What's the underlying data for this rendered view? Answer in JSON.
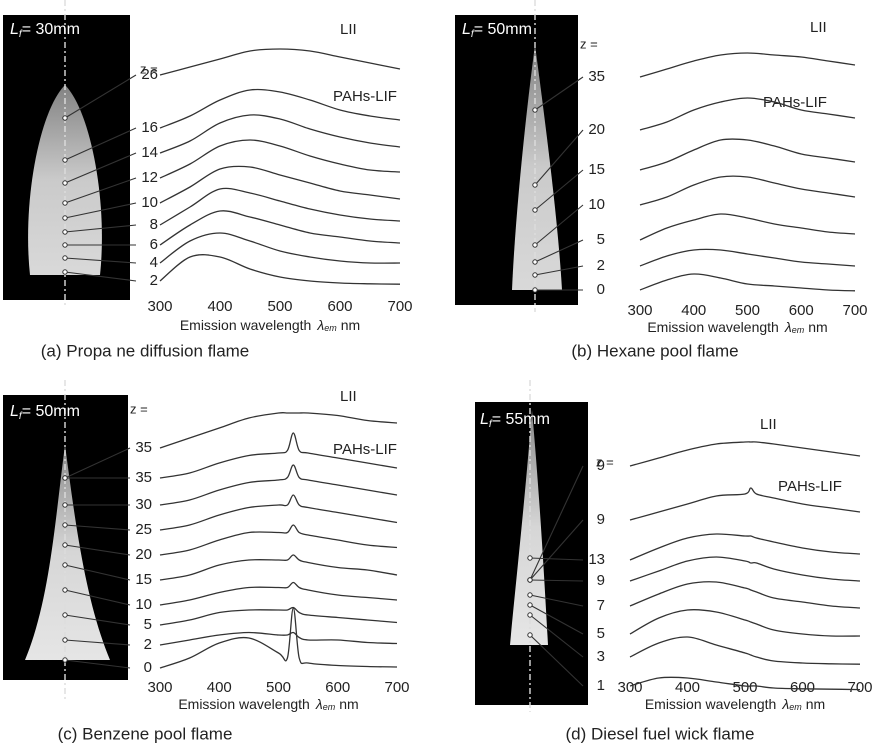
{
  "chart_data": [
    {
      "type": "line",
      "caption": "(a) Propa ne diffusion flame",
      "flame_symbol": "L",
      "flame_symbol_sub": "f",
      "flame_length": "= 30mm",
      "z_label": "z =",
      "annotations": [
        "LII",
        "PAHs-LIF"
      ],
      "x_label": "Emission wavelength",
      "x_symbol": "λ",
      "x_symbol_sub": "em",
      "x_unit": "nm",
      "x": [
        300,
        350,
        400,
        450,
        500,
        550,
        600,
        650,
        700
      ],
      "xlim": [
        300,
        700
      ],
      "xticks": [
        300,
        400,
        500,
        600,
        700
      ],
      "series": [
        {
          "name": "26",
          "color": "#333333",
          "values": [
            2,
            4,
            6,
            8,
            8.5,
            8,
            6.5,
            5,
            3.5
          ]
        },
        {
          "name": "16",
          "color": "#333333",
          "values": [
            0,
            3,
            7,
            9.5,
            9,
            7,
            4.5,
            3,
            2
          ]
        },
        {
          "name": "14",
          "color": "#333333",
          "values": [
            0,
            3,
            7.5,
            9.5,
            8.5,
            6,
            4,
            2.5,
            1.5
          ]
        },
        {
          "name": "12",
          "color": "#333333",
          "values": [
            0,
            3.5,
            8,
            9.5,
            8,
            5.5,
            3.5,
            2,
            1.5
          ]
        },
        {
          "name": "10",
          "color": "#333333",
          "values": [
            0,
            4,
            8.5,
            9,
            7,
            5,
            3,
            2,
            1
          ]
        },
        {
          "name": "8",
          "color": "#333333",
          "values": [
            0,
            4.5,
            9,
            8,
            6,
            4,
            2.5,
            1.5,
            1
          ]
        },
        {
          "name": "6",
          "color": "#333333",
          "values": [
            0,
            5,
            8.5,
            7,
            5,
            3,
            2,
            1,
            0.5
          ]
        },
        {
          "name": "4",
          "color": "#333333",
          "values": [
            0.5,
            6,
            8,
            6,
            3.5,
            2,
            1,
            0.5,
            0.5
          ]
        },
        {
          "name": "2",
          "color": "#333333",
          "values": [
            1,
            7,
            7,
            4,
            2,
            1,
            0.5,
            0.3,
            0.2
          ]
        }
      ]
    },
    {
      "type": "line",
      "caption": "(b) Hexane pool flame",
      "flame_symbol": "L",
      "flame_symbol_sub": "f",
      "flame_length": "= 50mm",
      "z_label": "z =",
      "annotations": [
        "LII",
        "PAHs-LIF"
      ],
      "x_label": "Emission wavelength",
      "x_symbol": "λ",
      "x_symbol_sub": "em",
      "x_unit": "nm",
      "x": [
        300,
        350,
        400,
        450,
        500,
        550,
        600,
        650,
        700
      ],
      "xlim": [
        300,
        700
      ],
      "xticks": [
        300,
        400,
        500,
        600,
        700
      ],
      "series": [
        {
          "name": "35",
          "color": "#333333",
          "values": [
            2,
            4,
            6,
            7.5,
            8,
            7.5,
            7,
            6,
            5
          ]
        },
        {
          "name": "20",
          "color": "#333333",
          "values": [
            0,
            2,
            5,
            7,
            8,
            7,
            5,
            4,
            3
          ]
        },
        {
          "name": "15",
          "color": "#333333",
          "values": [
            0,
            2,
            5,
            7.5,
            7.5,
            6,
            4,
            3,
            2
          ]
        },
        {
          "name": "10",
          "color": "#333333",
          "values": [
            0,
            2,
            5,
            7,
            7,
            5.5,
            4,
            3,
            2
          ]
        },
        {
          "name": "5",
          "color": "#333333",
          "values": [
            0,
            3,
            5,
            6.5,
            5.5,
            4,
            3,
            2,
            1.5
          ]
        },
        {
          "name": "2",
          "color": "#333333",
          "values": [
            1,
            3.5,
            5,
            5,
            4,
            3,
            2,
            1.5,
            1
          ]
        },
        {
          "name": "0",
          "color": "#333333",
          "values": [
            0.5,
            3,
            4.5,
            3.5,
            2,
            1.5,
            1,
            0.5,
            0.3
          ]
        }
      ]
    },
    {
      "type": "line",
      "caption": "(c) Benzene pool flame",
      "flame_symbol": "L",
      "flame_symbol_sub": "f",
      "flame_length": "= 50mm",
      "z_label": "z =",
      "annotations": [
        "LII",
        "PAHs-LIF"
      ],
      "x_label": "Emission wavelength",
      "x_symbol": "λ",
      "x_symbol_sub": "em",
      "x_unit": "nm",
      "x": [
        300,
        350,
        400,
        450,
        500,
        515,
        525,
        535,
        550,
        600,
        650,
        700
      ],
      "xlim": [
        300,
        700
      ],
      "xticks": [
        300,
        400,
        500,
        600,
        700
      ],
      "series": [
        {
          "name": "35",
          "color": "#333333",
          "values": [
            0,
            2,
            4,
            6,
            7,
            7,
            7,
            7,
            7,
            6.5,
            5.5,
            5
          ]
        },
        {
          "name": "35",
          "color": "#333333",
          "values": [
            0,
            1,
            3,
            4.5,
            5,
            5.5,
            9,
            5.5,
            5,
            4,
            3,
            2
          ]
        },
        {
          "name": "30",
          "color": "#333333",
          "values": [
            0,
            1,
            3,
            4.5,
            5,
            5.5,
            8,
            5.5,
            5,
            4,
            3,
            2
          ]
        },
        {
          "name": "25",
          "color": "#333333",
          "values": [
            0,
            1,
            3,
            4.5,
            5,
            5,
            7,
            5,
            4.5,
            3.5,
            2.5,
            1.5
          ]
        },
        {
          "name": "20",
          "color": "#333333",
          "values": [
            0,
            1,
            3,
            4.5,
            4.5,
            4.5,
            6,
            4.5,
            4,
            3,
            2,
            1.5
          ]
        },
        {
          "name": "15",
          "color": "#333333",
          "values": [
            0,
            1,
            3,
            4,
            4,
            4,
            5,
            4,
            3.5,
            2.5,
            2,
            1
          ]
        },
        {
          "name": "10",
          "color": "#333333",
          "values": [
            0,
            1,
            2.5,
            3.5,
            3.5,
            3.5,
            4.5,
            3.5,
            3,
            2,
            1.5,
            1
          ]
        },
        {
          "name": "5",
          "color": "#333333",
          "values": [
            0,
            1,
            2.5,
            3,
            3,
            3,
            3.5,
            2.5,
            2,
            1.5,
            1,
            0.5
          ]
        },
        {
          "name": "2",
          "color": "#333333",
          "values": [
            0,
            1,
            2,
            2.5,
            2,
            2,
            2.5,
            1.5,
            1,
            1,
            0.5,
            0.3
          ]
        },
        {
          "name": "0",
          "color": "#333333",
          "values": [
            0,
            2,
            5,
            6,
            3,
            2,
            12,
            2,
            1,
            0.5,
            0.3,
            0.2
          ]
        }
      ]
    },
    {
      "type": "line",
      "caption": "(d) Diesel fuel wick flame",
      "flame_symbol": "L",
      "flame_symbol_sub": "f",
      "flame_length": "= 55mm",
      "z_label": "z =",
      "annotations": [
        "LII",
        "PAHs-LIF"
      ],
      "x_label": "Emission wavelength",
      "x_symbol": "λ",
      "x_symbol_sub": "em",
      "x_unit": "nm",
      "x": [
        300,
        350,
        400,
        450,
        500,
        510,
        520,
        550,
        600,
        650,
        700
      ],
      "xlim": [
        300,
        700
      ],
      "xticks": [
        300,
        400,
        500,
        600,
        700
      ],
      "series": [
        {
          "name": "9",
          "color": "#333333",
          "values": [
            1,
            3,
            5,
            6.5,
            7,
            7,
            7,
            6.5,
            5.5,
            4.5,
            3.5
          ]
        },
        {
          "name": "9",
          "color": "#333333",
          "values": [
            0,
            2,
            4,
            6,
            6.5,
            8,
            6.5,
            5.5,
            4,
            3,
            2
          ]
        },
        {
          "name": "13",
          "color": "#333333",
          "values": [
            0,
            3,
            5.5,
            6.5,
            6,
            6,
            5.5,
            4.5,
            3,
            2,
            1.5
          ]
        },
        {
          "name": "9",
          "color": "#333333",
          "values": [
            1,
            3.5,
            6,
            7,
            6,
            5.5,
            5.5,
            4,
            2.5,
            1.5,
            1
          ]
        },
        {
          "name": "7",
          "color": "#333333",
          "values": [
            1,
            4,
            6.5,
            7,
            5.5,
            5,
            4.5,
            3,
            2,
            1,
            0.5
          ]
        },
        {
          "name": "5",
          "color": "#333333",
          "values": [
            1,
            5,
            7,
            6.5,
            4.5,
            4,
            3.5,
            2,
            1,
            0.5,
            0.5
          ]
        },
        {
          "name": "3",
          "color": "#333333",
          "values": [
            2,
            5.5,
            7,
            5,
            3,
            2.5,
            2,
            1,
            0.5,
            0.3,
            0.2
          ]
        },
        {
          "name": "1",
          "color": "#333333",
          "values": [
            1,
            3,
            3,
            2,
            1,
            1,
            1,
            0.5,
            0.3,
            0.2,
            0.1
          ]
        }
      ]
    }
  ]
}
